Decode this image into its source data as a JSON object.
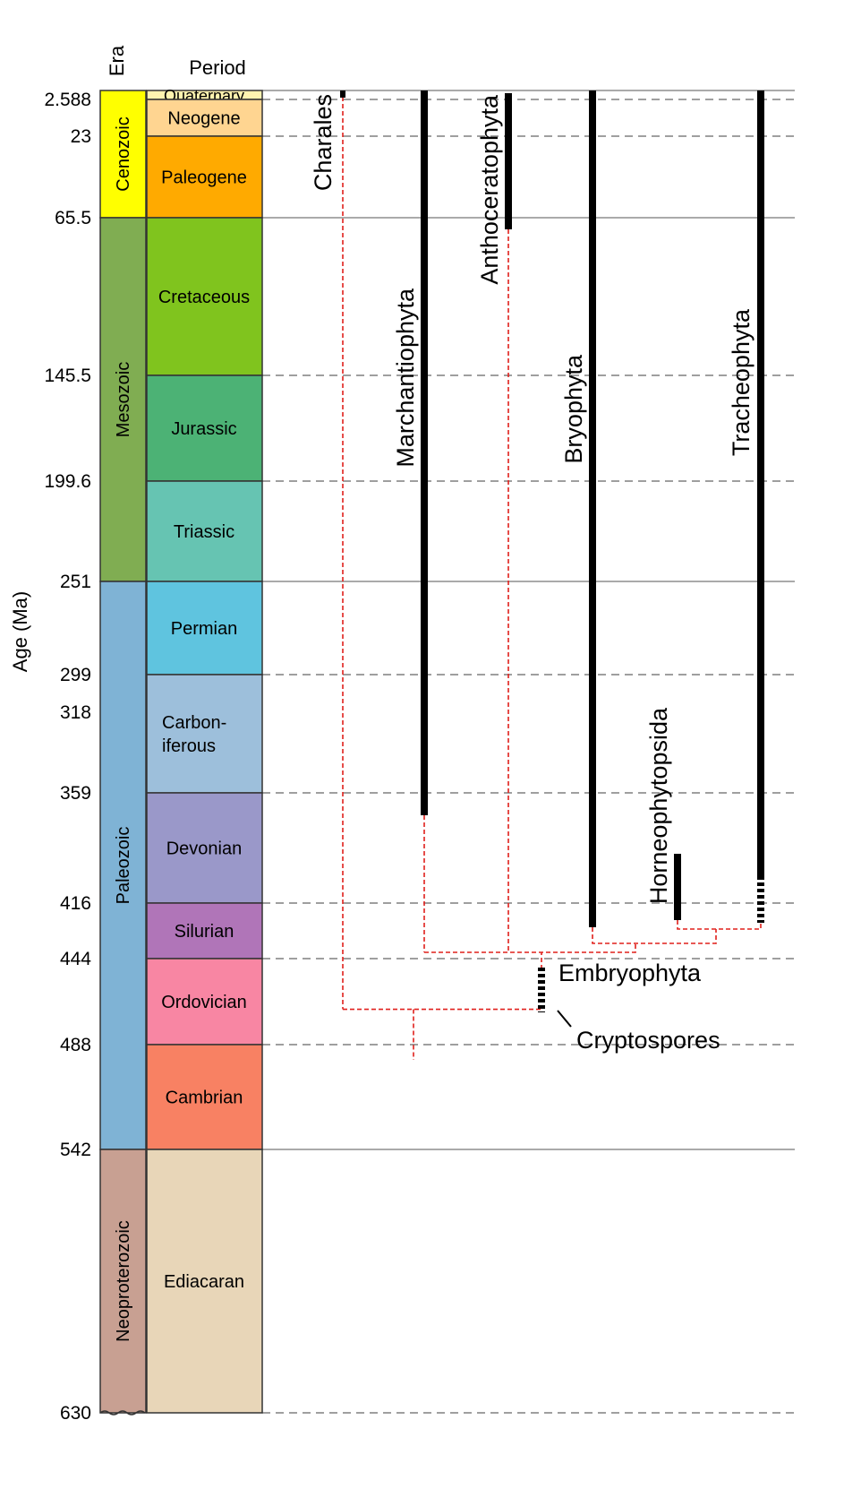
{
  "headers": {
    "era": "Era",
    "period": "Period"
  },
  "axis": {
    "label": "Age (Ma)"
  },
  "ticks": [
    "2.588",
    "23",
    "65.5",
    "145.5",
    "199.6",
    "251",
    "299",
    "318",
    "359",
    "416",
    "444",
    "488",
    "542",
    "630"
  ],
  "eras": [
    {
      "name": "Cenozoic",
      "start_ma": 0,
      "end_ma": 65.5,
      "color": "#ffff00"
    },
    {
      "name": "Mesozoic",
      "start_ma": 65.5,
      "end_ma": 251,
      "color": "#80ad52"
    },
    {
      "name": "Paleozoic",
      "start_ma": 251,
      "end_ma": 542,
      "color": "#7fb3d5"
    },
    {
      "name": "Neoproterozoic",
      "start_ma": 542,
      "end_ma": 630,
      "color": "#c8a092"
    }
  ],
  "periods": [
    {
      "name": "Quaternary",
      "start_ma": 0,
      "end_ma": 2.588,
      "color": "#fff3b0"
    },
    {
      "name": "Neogene",
      "start_ma": 2.588,
      "end_ma": 23,
      "color": "#ffd591"
    },
    {
      "name": "Paleogene",
      "start_ma": 23,
      "end_ma": 65.5,
      "color": "#ffaa00"
    },
    {
      "name": "Cretaceous",
      "start_ma": 65.5,
      "end_ma": 145.5,
      "color": "#80c41e"
    },
    {
      "name": "Jurassic",
      "start_ma": 145.5,
      "end_ma": 199.6,
      "color": "#4cb275"
    },
    {
      "name": "Triassic",
      "start_ma": 199.6,
      "end_ma": 251,
      "color": "#66c4b2"
    },
    {
      "name": "Permian",
      "start_ma": 251,
      "end_ma": 299,
      "color": "#5fc4df"
    },
    {
      "name": "Carbon-\niferous",
      "start_ma": 299,
      "end_ma": 359,
      "color": "#9dbfdb"
    },
    {
      "name": "Devonian",
      "start_ma": 359,
      "end_ma": 416,
      "color": "#9a98c9"
    },
    {
      "name": "Silurian",
      "start_ma": 416,
      "end_ma": 444,
      "color": "#b075b8"
    },
    {
      "name": "Ordovician",
      "start_ma": 444,
      "end_ma": 488,
      "color": "#f886a3"
    },
    {
      "name": "Cambrian",
      "start_ma": 488,
      "end_ma": 542,
      "color": "#f88163"
    },
    {
      "name": "Ediacaran",
      "start_ma": 542,
      "end_ma": 630,
      "color": "#e8d6b8"
    }
  ],
  "boundaries": [
    {
      "ma": 0,
      "style": "solid"
    },
    {
      "ma": 2.588,
      "style": "dashed"
    },
    {
      "ma": 23,
      "style": "dashed"
    },
    {
      "ma": 65.5,
      "style": "solid"
    },
    {
      "ma": 145.5,
      "style": "dashed"
    },
    {
      "ma": 199.6,
      "style": "dashed"
    },
    {
      "ma": 251,
      "style": "solid"
    },
    {
      "ma": 299,
      "style": "dashed"
    },
    {
      "ma": 359,
      "style": "dashed"
    },
    {
      "ma": 416,
      "style": "dashed"
    },
    {
      "ma": 444,
      "style": "dashed"
    },
    {
      "ma": 488,
      "style": "dashed"
    },
    {
      "ma": 542,
      "style": "solid"
    },
    {
      "ma": 630,
      "style": "dashed"
    }
  ],
  "clades": [
    {
      "name": "Charales",
      "first_ma": 1.5,
      "last_ma": 0,
      "fossil_range": true
    },
    {
      "name": "Marchantiophyta",
      "first_ma": 372,
      "last_ma": 0,
      "fossil_range": true
    },
    {
      "name": "Anthoceratophyta",
      "first_ma": 71,
      "last_ma": 2,
      "fossil_range": true
    },
    {
      "name": "Bryophyta",
      "first_ma": 427,
      "last_ma": 0,
      "fossil_range": true
    },
    {
      "name": "Horneophytopsida",
      "first_ma": 423,
      "last_ma": 391,
      "fossil_range": true
    },
    {
      "name": "Tracheophyta",
      "first_ma": 426,
      "last_ma": 0,
      "fossil_range": true
    },
    {
      "name": "Embryophyta",
      "first_ma": 469,
      "last_ma": 447,
      "fossil_range": "dotted"
    },
    {
      "name": "Cryptospores",
      "first_ma": null,
      "last_ma": null,
      "pointer": true
    }
  ],
  "phylogeny": {
    "color": "#e0201c",
    "note_nodes_ma": [
      426,
      435,
      440,
      437,
      469,
      474
    ]
  },
  "colors": {
    "range_bar": "#000000",
    "tree_line": "#e0201c",
    "grid_line": "#555555"
  }
}
